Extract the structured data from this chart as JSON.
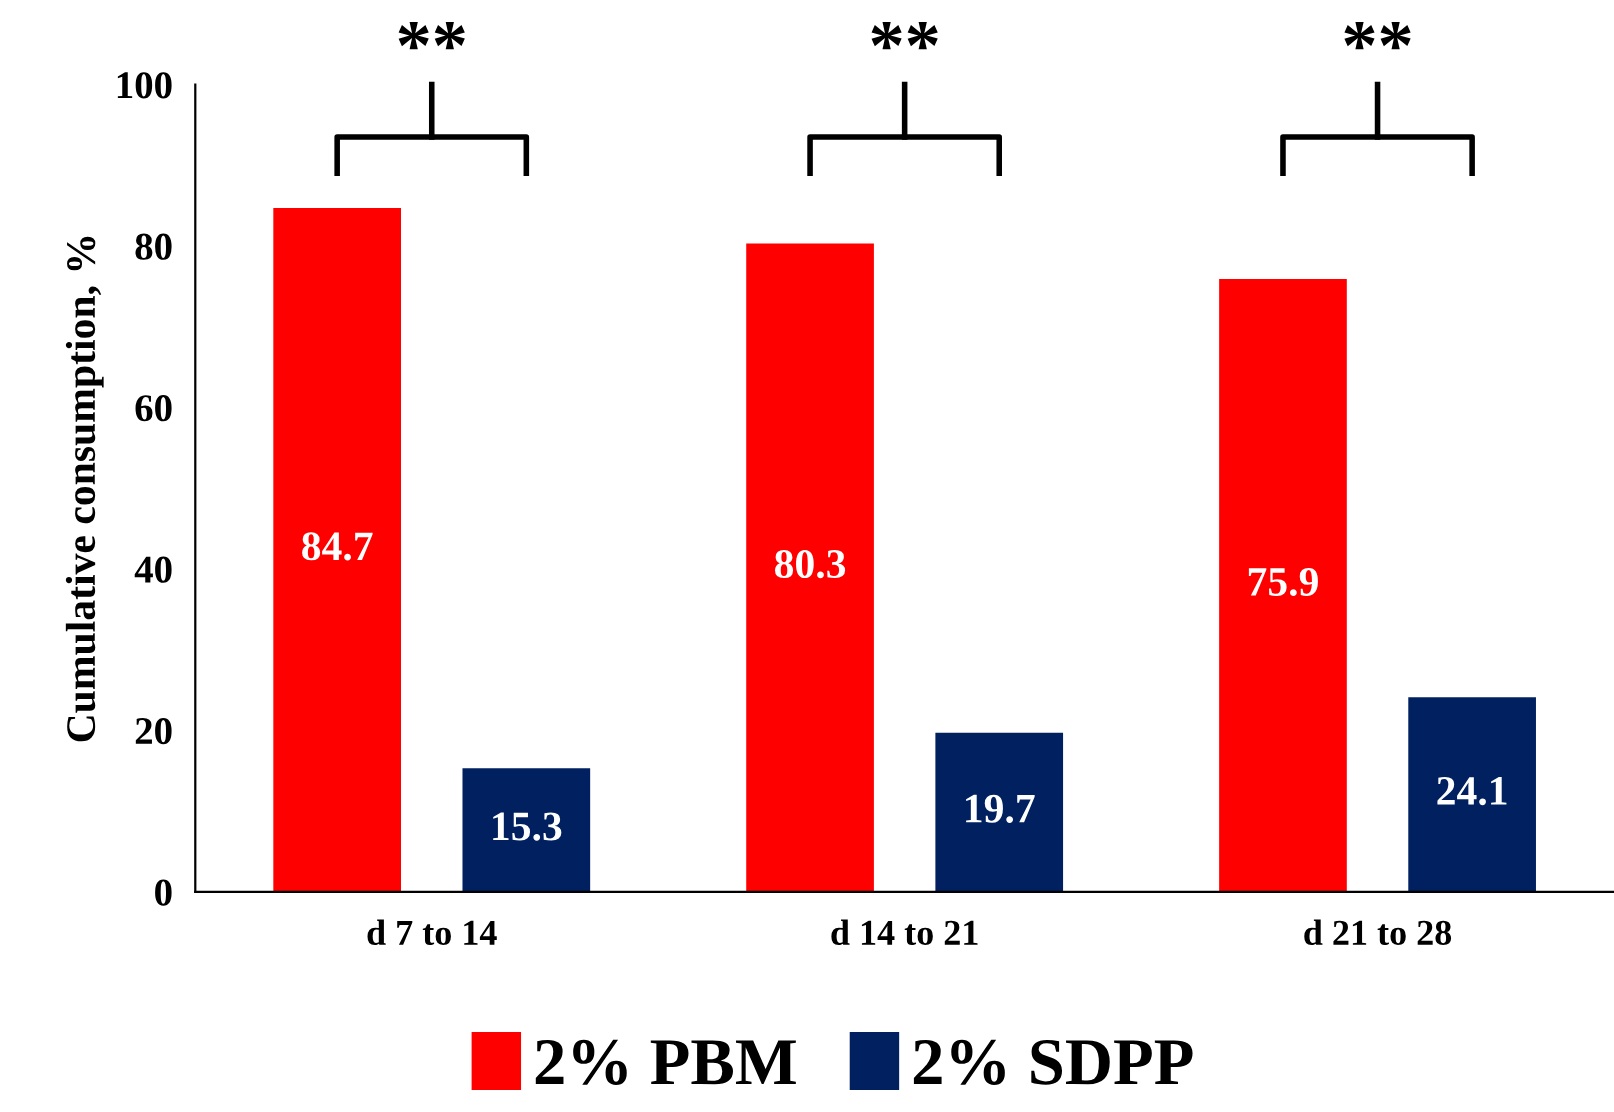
{
  "chart_data": {
    "type": "bar",
    "ylabel": "Cumulative consumption, %",
    "categories": [
      "d 7 to 14",
      "d 14 to 21",
      "d 21 to 28"
    ],
    "series": [
      {
        "name": "2% PBM",
        "color": "#ff0000",
        "values": [
          84.7,
          80.3,
          75.9
        ]
      },
      {
        "name": "2% SDPP",
        "color": "#002060",
        "values": [
          15.3,
          19.7,
          24.1
        ]
      }
    ],
    "ylim": [
      0,
      100
    ],
    "yticks": [
      0,
      20,
      40,
      60,
      80,
      100
    ],
    "grid": false,
    "legend": "bottom",
    "data_labels": true,
    "annotations": [
      "**",
      "**",
      "**"
    ]
  }
}
